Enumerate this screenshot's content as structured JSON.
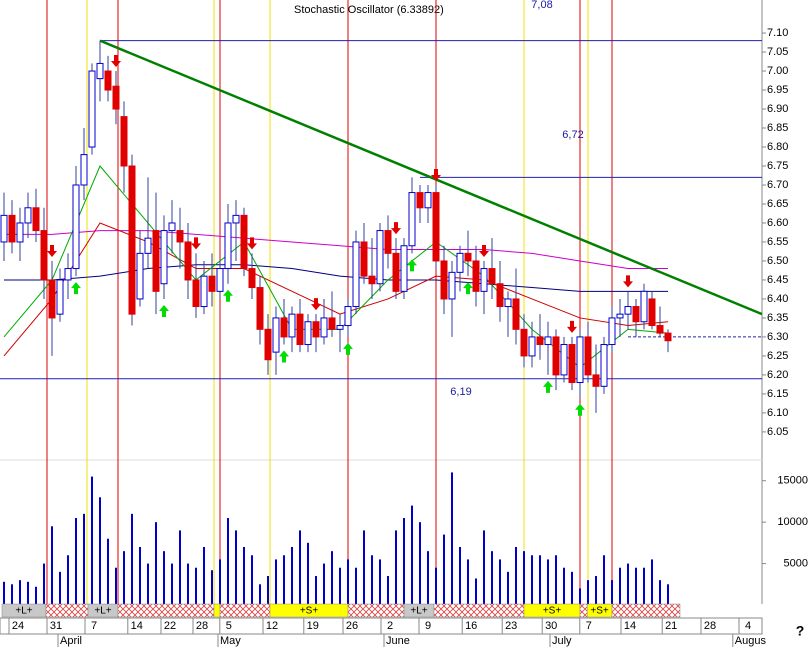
{
  "chart_data": {
    "type": "candlestick",
    "title": "Stochastic Oscillator (6.33892)",
    "help_label": "?",
    "xlim": [
      -0.5,
      94.75
    ],
    "ylim": [
      5.976,
      7.187
    ],
    "yticks": [
      {
        "value": 7.1,
        "label": "7.10"
      },
      7.05,
      {
        "value": 7.0,
        "label": "7.00"
      },
      6.95,
      {
        "value": 6.9,
        "label": "6.90"
      },
      6.85,
      {
        "value": 6.8,
        "label": "6.80"
      },
      6.75,
      {
        "value": 6.7,
        "label": "6.70"
      },
      6.65,
      {
        "value": 6.6,
        "label": "6.60"
      },
      6.55,
      {
        "value": 6.5,
        "label": "6.50"
      },
      6.45,
      {
        "value": 6.4,
        "label": "6.40"
      },
      6.35,
      {
        "value": 6.3,
        "label": "6.30"
      },
      6.25,
      {
        "value": 6.2,
        "label": "6.20"
      },
      6.15,
      {
        "value": 6.1,
        "label": "6.10"
      },
      6.05
    ],
    "volume_ylim": [
      0,
      17500
    ],
    "volume_yticks": [
      5000,
      10000,
      15000
    ],
    "volume_color": "#0000cc",
    "up_color": "#ffffff",
    "down_color": "#e00000",
    "outline_color": "#0000cc",
    "xticks": [
      {
        "value": 1.75,
        "label": "24"
      },
      {
        "value": 6.5,
        "label": "31"
      },
      {
        "value": 11.25,
        "label": "7"
      },
      {
        "value": 16.6,
        "label": "14"
      },
      {
        "value": 20.75,
        "label": "22"
      },
      {
        "value": 24.75,
        "label": "28"
      },
      {
        "value": 28.1,
        "label": "5"
      },
      {
        "value": 33.5,
        "label": "12"
      },
      {
        "value": 38.6,
        "label": "19"
      },
      {
        "value": 43.5,
        "label": "26"
      },
      {
        "value": 48.25,
        "label": "2"
      },
      {
        "value": 53,
        "label": "9"
      },
      {
        "value": 58.4,
        "label": "16"
      },
      {
        "value": 63.4,
        "label": "23"
      },
      {
        "value": 68.4,
        "label": "30"
      },
      {
        "value": 73.1,
        "label": "7"
      },
      {
        "value": 78.25,
        "label": "14"
      },
      {
        "value": 83.4,
        "label": "21"
      },
      {
        "value": 88.25,
        "label": "28"
      },
      {
        "value": 93,
        "label": "4"
      }
    ],
    "month_labels": [
      {
        "value": 7.25,
        "label": "April"
      },
      {
        "value": 27.25,
        "label": "May"
      },
      {
        "value": 48,
        "label": "June"
      },
      {
        "value": 68.75,
        "label": "July"
      },
      {
        "value": 91.6,
        "label": "Augus"
      }
    ],
    "ohlc": [
      [
        6.55,
        6.68,
        6.5,
        6.62
      ],
      [
        6.62,
        6.66,
        6.52,
        6.55
      ],
      [
        6.55,
        6.64,
        6.5,
        6.6
      ],
      [
        6.6,
        6.68,
        6.56,
        6.64
      ],
      [
        6.64,
        6.69,
        6.55,
        6.58
      ],
      [
        6.58,
        6.64,
        6.4,
        6.45
      ],
      [
        6.45,
        6.5,
        6.25,
        6.35
      ],
      [
        6.36,
        6.48,
        6.34,
        6.45
      ],
      [
        6.45,
        6.52,
        6.4,
        6.48
      ],
      [
        6.48,
        6.75,
        6.46,
        6.7
      ],
      [
        6.7,
        6.85,
        6.66,
        6.78
      ],
      [
        6.8,
        7.02,
        6.78,
        7.0
      ],
      [
        6.98,
        7.08,
        6.92,
        7.02
      ],
      [
        7.0,
        7.04,
        6.92,
        6.95
      ],
      [
        6.96,
        7.0,
        6.86,
        6.9
      ],
      [
        6.88,
        6.92,
        6.68,
        6.75
      ],
      [
        6.75,
        6.78,
        6.33,
        6.36
      ],
      [
        6.4,
        6.58,
        6.38,
        6.52
      ],
      [
        6.52,
        6.72,
        6.48,
        6.56
      ],
      [
        6.58,
        6.68,
        6.36,
        6.42
      ],
      [
        6.44,
        6.62,
        6.4,
        6.58
      ],
      [
        6.58,
        6.66,
        6.52,
        6.6
      ],
      [
        6.58,
        6.64,
        6.48,
        6.55
      ],
      [
        6.55,
        6.6,
        6.4,
        6.45
      ],
      [
        6.45,
        6.52,
        6.35,
        6.38
      ],
      [
        6.38,
        6.5,
        6.36,
        6.46
      ],
      [
        6.46,
        6.52,
        6.38,
        6.42
      ],
      [
        6.42,
        6.5,
        6.4,
        6.48
      ],
      [
        6.48,
        6.65,
        6.44,
        6.6
      ],
      [
        6.6,
        6.66,
        6.5,
        6.62
      ],
      [
        6.62,
        6.64,
        6.46,
        6.48
      ],
      [
        6.48,
        6.52,
        6.4,
        6.43
      ],
      [
        6.43,
        6.46,
        6.28,
        6.32
      ],
      [
        6.32,
        6.36,
        6.2,
        6.24
      ],
      [
        6.26,
        6.38,
        6.2,
        6.35
      ],
      [
        6.35,
        6.4,
        6.28,
        6.3
      ],
      [
        6.3,
        6.38,
        6.26,
        6.36
      ],
      [
        6.36,
        6.4,
        6.26,
        6.28
      ],
      [
        6.28,
        6.36,
        6.26,
        6.34
      ],
      [
        6.34,
        6.36,
        6.26,
        6.3
      ],
      [
        6.3,
        6.4,
        6.28,
        6.35
      ],
      [
        6.35,
        6.42,
        6.3,
        6.32
      ],
      [
        6.32,
        6.36,
        6.26,
        6.33
      ],
      [
        6.33,
        6.4,
        6.3,
        6.38
      ],
      [
        6.38,
        6.58,
        6.36,
        6.55
      ],
      [
        6.55,
        6.6,
        6.44,
        6.46
      ],
      [
        6.46,
        6.56,
        6.4,
        6.44
      ],
      [
        6.44,
        6.6,
        6.42,
        6.58
      ],
      [
        6.58,
        6.62,
        6.48,
        6.52
      ],
      [
        6.52,
        6.56,
        6.4,
        6.42
      ],
      [
        6.42,
        6.56,
        6.4,
        6.54
      ],
      [
        6.54,
        6.72,
        6.52,
        6.68
      ],
      [
        6.68,
        6.7,
        6.6,
        6.64
      ],
      [
        6.64,
        6.7,
        6.6,
        6.68
      ],
      [
        6.68,
        6.7,
        6.48,
        6.5
      ],
      [
        6.5,
        6.54,
        6.36,
        6.4
      ],
      [
        6.4,
        6.5,
        6.3,
        6.47
      ],
      [
        6.47,
        6.54,
        6.42,
        6.52
      ],
      [
        6.52,
        6.58,
        6.46,
        6.5
      ],
      [
        6.5,
        6.54,
        6.38,
        6.42
      ],
      [
        6.42,
        6.5,
        6.36,
        6.48
      ],
      [
        6.48,
        6.56,
        6.4,
        6.44
      ],
      [
        6.44,
        6.5,
        6.34,
        6.38
      ],
      [
        6.38,
        6.42,
        6.3,
        6.4
      ],
      [
        6.4,
        6.48,
        6.28,
        6.32
      ],
      [
        6.32,
        6.36,
        6.22,
        6.25
      ],
      [
        6.25,
        6.34,
        6.22,
        6.3
      ],
      [
        6.3,
        6.36,
        6.24,
        6.28
      ],
      [
        6.28,
        6.34,
        6.2,
        6.3
      ],
      [
        6.3,
        6.32,
        6.16,
        6.2
      ],
      [
        6.2,
        6.3,
        6.18,
        6.28
      ],
      [
        6.28,
        6.3,
        6.16,
        6.18
      ],
      [
        6.18,
        6.32,
        6.14,
        6.3
      ],
      [
        6.3,
        6.34,
        6.18,
        6.2
      ],
      [
        6.2,
        6.28,
        6.1,
        6.17
      ],
      [
        6.17,
        6.3,
        6.15,
        6.28
      ],
      [
        6.28,
        6.38,
        6.26,
        6.35
      ],
      [
        6.35,
        6.4,
        6.3,
        6.36
      ],
      [
        6.36,
        6.42,
        6.32,
        6.38
      ],
      [
        6.38,
        6.4,
        6.3,
        6.34
      ],
      [
        6.34,
        6.44,
        6.32,
        6.42
      ],
      [
        6.4,
        6.42,
        6.32,
        6.33
      ],
      [
        6.33,
        6.38,
        6.3,
        6.31
      ],
      [
        6.31,
        6.32,
        6.26,
        6.29
      ]
    ],
    "volume": [
      2800,
      2500,
      3000,
      2800,
      2200,
      5000,
      9500,
      4000,
      6000,
      10500,
      11000,
      15500,
      13000,
      8000,
      4500,
      6500,
      11000,
      7000,
      5000,
      10000,
      6500,
      5000,
      9000,
      5000,
      4500,
      7000,
      4200,
      5500,
      10500,
      9000,
      7000,
      6000,
      2500,
      3500,
      5500,
      6000,
      7000,
      9000,
      7500,
      3500,
      5000,
      6500,
      4500,
      5500,
      4500,
      9000,
      6000,
      5500,
      3500,
      9000,
      10500,
      12000,
      10000,
      6500,
      4500,
      8500,
      16000,
      7000,
      5500,
      3200,
      9000,
      6500,
      5500,
      4000,
      7000,
      6500,
      6000,
      6000,
      5500,
      6000,
      4500,
      4000,
      2000,
      3000,
      3500,
      6000,
      3000,
      4500,
      5000,
      4500,
      4500,
      5500,
      3000,
      2500
    ],
    "ma_x": [
      0,
      6,
      12,
      18,
      24,
      30,
      36,
      42,
      48,
      54,
      60,
      66,
      72,
      78,
      83
    ],
    "ma": [
      {
        "color": "#000080",
        "values": [
          6.45,
          6.45,
          6.46,
          6.48,
          6.49,
          6.49,
          6.48,
          6.46,
          6.45,
          6.45,
          6.44,
          6.43,
          6.42,
          6.42,
          6.42
        ]
      },
      {
        "color": "#cc00cc",
        "values": [
          6.57,
          6.57,
          6.58,
          6.58,
          6.57,
          6.56,
          6.55,
          6.54,
          6.53,
          6.53,
          6.53,
          6.52,
          6.5,
          6.48,
          6.48
        ]
      },
      {
        "color": "#cc0000",
        "values": [
          6.25,
          6.4,
          6.6,
          6.55,
          6.48,
          6.48,
          6.42,
          6.36,
          6.4,
          6.46,
          6.45,
          6.4,
          6.35,
          6.33,
          6.34
        ]
      },
      {
        "color": "#00aa00",
        "values": [
          6.3,
          6.45,
          6.75,
          6.6,
          6.45,
          6.55,
          6.32,
          6.32,
          6.45,
          6.55,
          6.46,
          6.32,
          6.22,
          6.32,
          6.31
        ]
      }
    ],
    "levels": [
      {
        "value": 7.08,
        "label": "7,08",
        "from": 12
      },
      {
        "value": 6.72,
        "label": "6,72",
        "from": 52
      },
      {
        "value": 6.19,
        "label": "6,19",
        "from": -0.5
      }
    ],
    "dashed_level": {
      "value": 6.3,
      "from": 78
    },
    "trend_line": {
      "color": "#008000",
      "x": [
        12,
        94.75
      ],
      "y": [
        7.08,
        6.36
      ]
    },
    "red_lines": [
      5.375,
      14.25,
      27,
      43,
      54,
      72,
      76
    ],
    "yellow_lines": [
      10.375,
      26.25,
      33.25,
      65,
      73
    ],
    "sell_signals": [
      6,
      14,
      24,
      31,
      39,
      49,
      54,
      60,
      71,
      78
    ],
    "buy_signals": [
      9,
      20,
      28,
      35,
      43,
      51,
      58,
      68,
      72
    ],
    "bands": [
      {
        "from": -0.25,
        "to": 5.25,
        "kind": "long",
        "label": "+L+"
      },
      {
        "from": 5.25,
        "to": 10.5,
        "kind": "neutral"
      },
      {
        "from": 10.5,
        "to": 14.25,
        "kind": "long",
        "label": "+L+"
      },
      {
        "from": 14.25,
        "to": 26.25,
        "kind": "neutral"
      },
      {
        "from": 26.25,
        "to": 27,
        "kind": "short"
      },
      {
        "from": 27,
        "to": 33.25,
        "kind": "neutral"
      },
      {
        "from": 33.25,
        "to": 43,
        "kind": "short",
        "label": "+S+"
      },
      {
        "from": 43,
        "to": 50,
        "kind": "neutral"
      },
      {
        "from": 50,
        "to": 53.75,
        "kind": "long",
        "label": "+L+"
      },
      {
        "from": 53.75,
        "to": 65,
        "kind": "neutral"
      },
      {
        "from": 65,
        "to": 72,
        "kind": "short",
        "label": "+S+"
      },
      {
        "from": 72,
        "to": 72.9,
        "kind": "neutral"
      },
      {
        "from": 72.9,
        "to": 76,
        "kind": "short",
        "label": "+S+"
      },
      {
        "from": 76,
        "to": 84.5,
        "kind": "neutral"
      }
    ]
  }
}
